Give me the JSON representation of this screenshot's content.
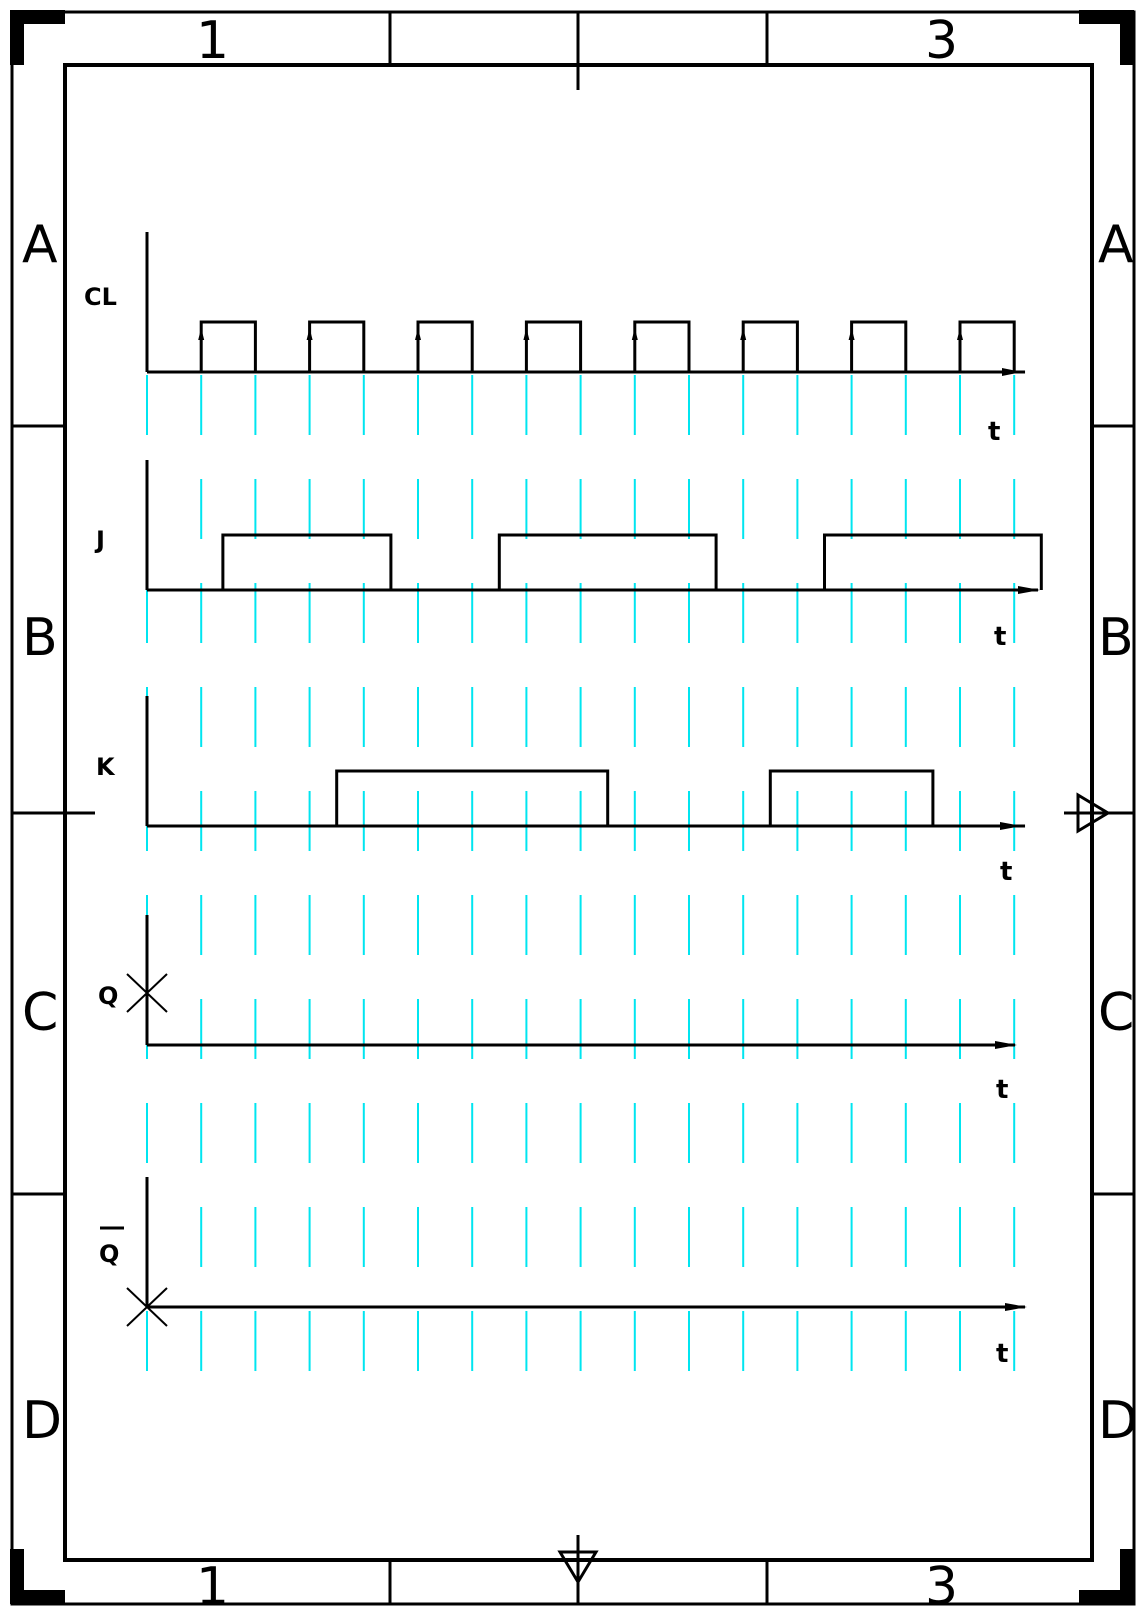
{
  "sheet": {
    "columns_top": [
      "1",
      "3"
    ],
    "columns_bottom": [
      "1",
      "3"
    ],
    "rows_left": [
      "A",
      "B",
      "C",
      "D"
    ],
    "rows_right": [
      "A",
      "B",
      "C",
      "D"
    ]
  },
  "signals": [
    {
      "id": "cl",
      "label": "CL",
      "time_label": "t",
      "overline": false
    },
    {
      "id": "j",
      "label": "J",
      "time_label": "t",
      "overline": false
    },
    {
      "id": "k",
      "label": "K",
      "time_label": "t",
      "overline": false
    },
    {
      "id": "q",
      "label": "Q",
      "time_label": "t",
      "overline": false
    },
    {
      "id": "qbar",
      "label": "Q",
      "time_label": "t",
      "overline": true
    }
  ],
  "timing": {
    "clock_periods": 8,
    "clock_high_intervals": [
      [
        1,
        2
      ],
      [
        3,
        4
      ],
      [
        5,
        6
      ],
      [
        7,
        8
      ],
      [
        9,
        10
      ],
      [
        11,
        12
      ],
      [
        13,
        14
      ],
      [
        15,
        16
      ]
    ],
    "j_high_intervals": [
      [
        1.4,
        4.5
      ],
      [
        6.5,
        10.5
      ],
      [
        12.5,
        16.5
      ]
    ],
    "k_high_intervals": [
      [
        3.5,
        8.5
      ],
      [
        11.5,
        14.5
      ]
    ],
    "q_initial": "unknown",
    "qbar_initial": "unknown"
  }
}
